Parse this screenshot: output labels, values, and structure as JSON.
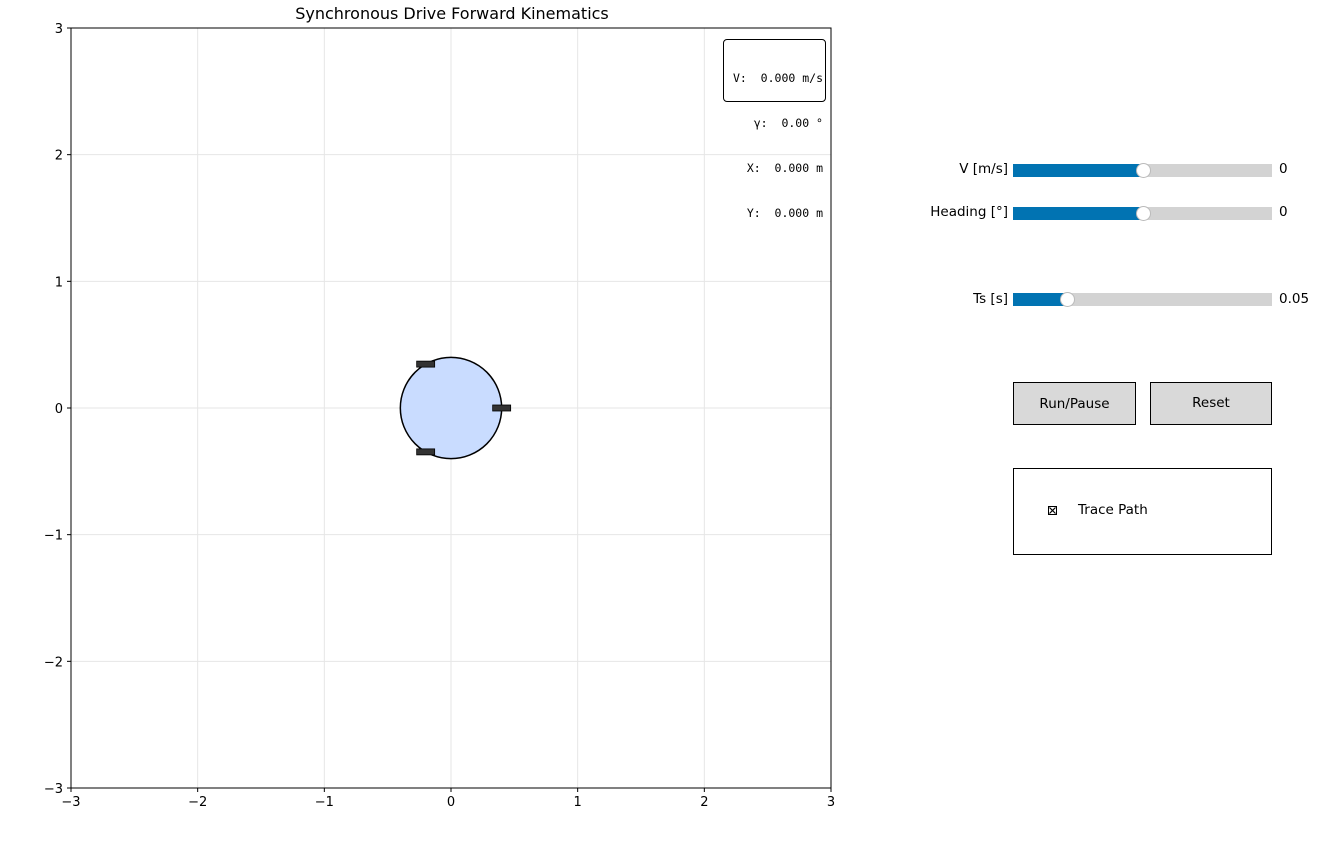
{
  "plot": {
    "title": "Synchronous Drive Forward Kinematics",
    "xlim": [
      -3,
      3
    ],
    "ylim": [
      -3,
      3
    ],
    "xticks": [
      "−3",
      "−2",
      "−1",
      "0",
      "1",
      "2",
      "3"
    ],
    "yticks": [
      "−3",
      "−2",
      "−1",
      "0",
      "1",
      "2",
      "3"
    ],
    "grid": true,
    "robot": {
      "center": [
        0,
        0
      ],
      "radius": 0.4,
      "body_color": "#c9dcff",
      "wheel_color": "#333333",
      "wheel_angles_deg": [
        0,
        120,
        240
      ],
      "heading_deg": 0
    }
  },
  "info": {
    "v_line": "V:  0.000 m/s",
    "gamma_line": "γ:  0.00 °",
    "x_line": "X:  0.000 m",
    "y_line": "Y:  0.000 m"
  },
  "controls": {
    "sliders": [
      {
        "label": "V [m/s]",
        "value_text": "0",
        "fraction": 0.5
      },
      {
        "label": "Heading [°]",
        "value_text": "0",
        "fraction": 0.5
      },
      {
        "label": "Ts [s]",
        "value_text": "0.05",
        "fraction": 0.21
      }
    ],
    "run_pause_label": "Run/Pause",
    "reset_label": "Reset",
    "trace_label": "Trace Path",
    "trace_checked": true
  },
  "colors": {
    "accent": "#0173b2",
    "track": "#d3d3d3",
    "button": "#d9d9d9"
  }
}
